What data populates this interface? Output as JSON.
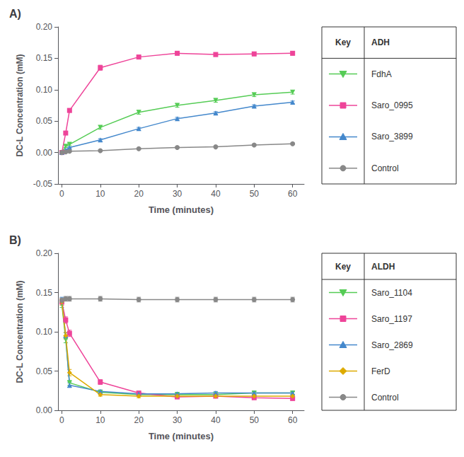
{
  "chart_data": [
    {
      "type": "line",
      "title": "A)",
      "xlabel": "Time (minutes)",
      "ylabel": "DC-L Concentration (mM)",
      "xlim": [
        -1,
        63
      ],
      "xticks": [
        0,
        10,
        20,
        30,
        40,
        50,
        60
      ],
      "ylim": [
        -0.05,
        0.2
      ],
      "yticks": [
        -0.05,
        {
          "value": 0,
          "label": "0.00"
        },
        0.05,
        {
          "value": 0.1,
          "label": "0.10"
        },
        0.15,
        {
          "value": 0.2,
          "label": "0.20"
        }
      ],
      "grid": false,
      "legend_header": "Key",
      "legend_title": "ADH",
      "series": [
        {
          "name": "FdhA",
          "color": "#55cc55",
          "marker": "triangle_down",
          "x": [
            0,
            1,
            2,
            10,
            20,
            30,
            40,
            50,
            60
          ],
          "values": [
            0.0,
            0.01,
            0.013,
            0.04,
            0.064,
            0.075,
            0.083,
            0.092,
            0.096
          ],
          "yerr": [
            0.001,
            0.002,
            0.002,
            0.003,
            0.003,
            0.003,
            0.003,
            0.003,
            0.003
          ]
        },
        {
          "name": "Saro_0995",
          "color": "#ee4499",
          "marker": "square",
          "x": [
            0,
            1,
            2,
            10,
            20,
            30,
            40,
            50,
            60
          ],
          "values": [
            0.0,
            0.031,
            0.067,
            0.135,
            0.152,
            0.158,
            0.156,
            0.157,
            0.158
          ],
          "yerr": [
            0.001,
            0.002,
            0.003,
            0.004,
            0.003,
            0.003,
            0.003,
            0.003,
            0.003
          ]
        },
        {
          "name": "Saro_3899",
          "color": "#4488cc",
          "marker": "triangle_up",
          "x": [
            0,
            1,
            2,
            10,
            20,
            30,
            40,
            50,
            60
          ],
          "values": [
            0.0,
            0.004,
            0.008,
            0.02,
            0.038,
            0.054,
            0.063,
            0.074,
            0.08
          ],
          "yerr": [
            0.001,
            0.001,
            0.001,
            0.002,
            0.002,
            0.002,
            0.002,
            0.002,
            0.002
          ]
        },
        {
          "name": "Control",
          "color": "#888888",
          "marker": "circle",
          "x": [
            0,
            1,
            2,
            10,
            20,
            30,
            40,
            50,
            60
          ],
          "values": [
            0.0,
            0.001,
            0.002,
            0.003,
            0.006,
            0.008,
            0.009,
            0.012,
            0.014
          ],
          "yerr": [
            0.0005,
            0.0005,
            0.0005,
            0.001,
            0.001,
            0.001,
            0.001,
            0.001,
            0.001
          ]
        }
      ]
    },
    {
      "type": "line",
      "title": "B)",
      "xlabel": "Time (minutes)",
      "ylabel": "DC-L Concentration (mM)",
      "xlim": [
        -1,
        63
      ],
      "xticks": [
        0,
        10,
        20,
        30,
        40,
        50,
        60
      ],
      "ylim": [
        0.0,
        0.2
      ],
      "yticks": [
        {
          "value": 0,
          "label": "0.00"
        },
        0.05,
        {
          "value": 0.1,
          "label": "0.10"
        },
        0.15,
        {
          "value": 0.2,
          "label": "0.20"
        }
      ],
      "grid": false,
      "legend_header": "Key",
      "legend_title": "ALDH",
      "series": [
        {
          "name": "Saro_1104",
          "color": "#55cc55",
          "marker": "triangle_down",
          "x": [
            0,
            1,
            2,
            10,
            20,
            30,
            40,
            50,
            60
          ],
          "values": [
            0.135,
            0.09,
            0.035,
            0.023,
            0.02,
            0.02,
            0.02,
            0.022,
            0.022
          ],
          "yerr": [
            0.004,
            0.004,
            0.003,
            0.002,
            0.002,
            0.002,
            0.002,
            0.002,
            0.002
          ]
        },
        {
          "name": "Saro_1197",
          "color": "#ee4499",
          "marker": "square",
          "x": [
            0,
            1,
            2,
            10,
            20,
            30,
            40,
            50,
            60
          ],
          "values": [
            0.138,
            0.115,
            0.098,
            0.036,
            0.022,
            0.017,
            0.018,
            0.016,
            0.015
          ],
          "yerr": [
            0.004,
            0.004,
            0.004,
            0.003,
            0.002,
            0.002,
            0.002,
            0.002,
            0.002
          ]
        },
        {
          "name": "Saro_2869",
          "color": "#4488cc",
          "marker": "triangle_up",
          "x": [
            0,
            1,
            2,
            10,
            20,
            30,
            40,
            50,
            60
          ],
          "values": [
            0.14,
            0.095,
            0.032,
            0.024,
            0.021,
            0.021,
            0.022,
            0.022,
            0.022
          ],
          "yerr": [
            0.004,
            0.004,
            0.003,
            0.002,
            0.002,
            0.002,
            0.002,
            0.002,
            0.002
          ]
        },
        {
          "name": "FerD",
          "color": "#ddaa00",
          "marker": "diamond",
          "x": [
            0,
            1,
            2,
            10,
            20,
            30,
            40,
            50,
            60
          ],
          "values": [
            0.138,
            0.095,
            0.048,
            0.02,
            0.018,
            0.018,
            0.018,
            0.018,
            0.018
          ],
          "yerr": [
            0.004,
            0.004,
            0.004,
            0.002,
            0.002,
            0.002,
            0.002,
            0.002,
            0.002
          ]
        },
        {
          "name": "Control",
          "color": "#888888",
          "marker": "circle",
          "x": [
            0,
            1,
            2,
            10,
            20,
            30,
            40,
            50,
            60
          ],
          "values": [
            0.14,
            0.142,
            0.142,
            0.142,
            0.141,
            0.141,
            0.141,
            0.141,
            0.141
          ],
          "yerr": [
            0.003,
            0.003,
            0.003,
            0.003,
            0.003,
            0.003,
            0.003,
            0.003,
            0.003
          ]
        }
      ]
    }
  ]
}
